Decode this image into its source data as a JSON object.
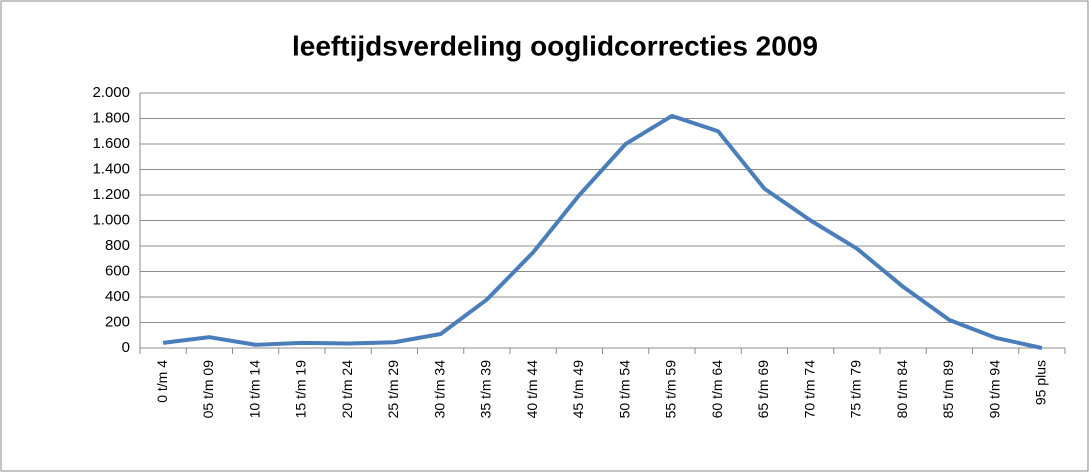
{
  "chart_data": {
    "type": "line",
    "title": "leeftijdsverdeling ooglidcorrecties 2009",
    "categories": [
      "0 t/m 4",
      "05 t/m 09",
      "10 t/m 14",
      "15 t/m 19",
      "20 t/m 24",
      "25 t/m 29",
      "30 t/m 34",
      "35 t/m 39",
      "40 t/m 44",
      "45 t/m 49",
      "50 t/m 54",
      "55 t/m 59",
      "60 t/m 64",
      "65 t/m 69",
      "70 t/m 74",
      "75 t/m 79",
      "80 t/m 84",
      "85 t/m 89",
      "90 t/m 94",
      "95 plus"
    ],
    "series": [
      {
        "name": "ooglidcorrecties",
        "color": "#4a7ebb",
        "values": [
          40,
          85,
          25,
          40,
          35,
          45,
          110,
          380,
          750,
          1200,
          1600,
          1820,
          1700,
          1250,
          1000,
          780,
          480,
          220,
          80,
          0
        ]
      }
    ],
    "ylim": [
      0,
      2000
    ],
    "yticks": [
      0,
      200,
      400,
      600,
      800,
      {
        "value": 1000,
        "label": "1.000"
      },
      {
        "value": 1200,
        "label": "1.200"
      },
      {
        "value": 1400,
        "label": "1.400"
      },
      {
        "value": 1600,
        "label": "1.600"
      },
      {
        "value": 1800,
        "label": "1.800"
      },
      {
        "value": 2000,
        "label": "2.000"
      }
    ],
    "grid": true
  }
}
